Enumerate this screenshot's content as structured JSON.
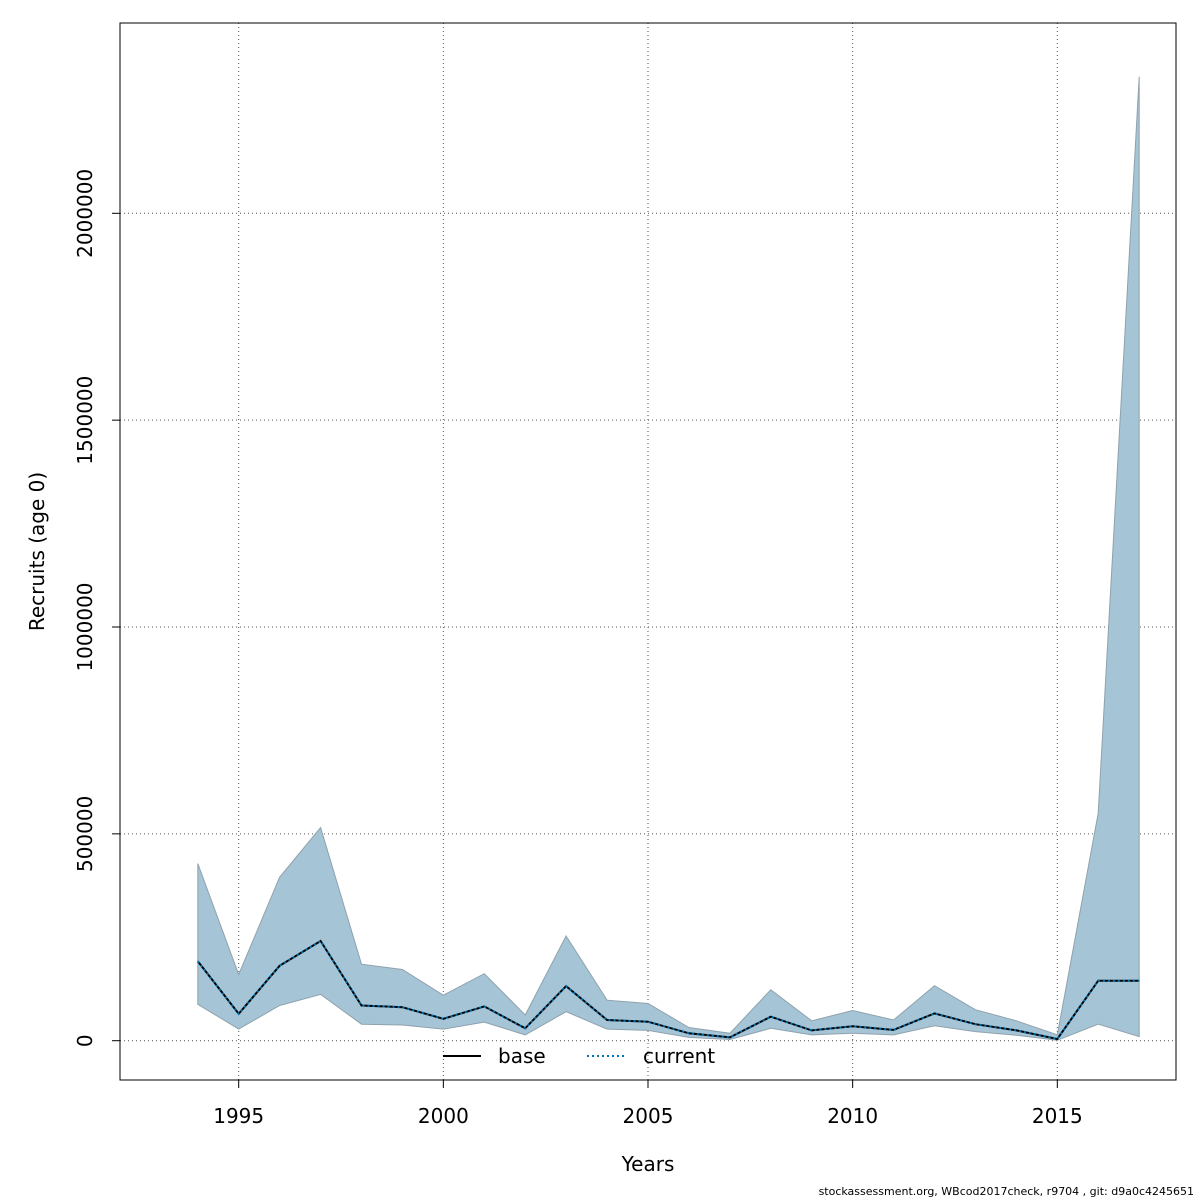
{
  "chart_data": {
    "type": "area",
    "xlabel": "Years",
    "ylabel": "Recruits (age 0)",
    "xlim": [
      1992.1,
      2017.9
    ],
    "ylim": [
      -95000,
      2460000
    ],
    "x_ticks": [
      1995,
      2000,
      2005,
      2010,
      2015
    ],
    "y_ticks": [
      0,
      500000,
      1000000,
      1500000,
      2000000
    ],
    "x_tick_labels": [
      "1995",
      "2000",
      "2005",
      "2010",
      "2015"
    ],
    "y_tick_labels": [
      "0",
      "500000",
      "1000000",
      "1500000",
      "2000000"
    ],
    "grid": true,
    "legend_position": "bottom-center",
    "x": [
      1994,
      1995,
      1996,
      1997,
      1998,
      1999,
      2000,
      2001,
      2002,
      2003,
      2004,
      2005,
      2006,
      2007,
      2008,
      2009,
      2010,
      2011,
      2012,
      2013,
      2014,
      2015,
      2016,
      2017
    ],
    "series": [
      {
        "name": "base",
        "line_style": "solid",
        "color": "#000000",
        "values": [
          192000,
          65000,
          181000,
          241000,
          85000,
          81000,
          53000,
          83000,
          30000,
          132000,
          50000,
          46000,
          18000,
          8000,
          58000,
          25000,
          35000,
          26000,
          66000,
          40000,
          25000,
          4000,
          145000,
          145000
        ]
      },
      {
        "name": "current",
        "line_style": "dotted",
        "color": "#0072B2",
        "values": [
          192000,
          65000,
          181000,
          241000,
          85000,
          81000,
          53000,
          83000,
          30000,
          132000,
          50000,
          46000,
          18000,
          8000,
          58000,
          25000,
          35000,
          26000,
          66000,
          40000,
          25000,
          4000,
          145000,
          145000
        ]
      }
    ],
    "confidence_band": {
      "fill_color": "#a5c4d5",
      "stroke_color": "#8fa2ad",
      "lower": [
        88000,
        28000,
        85000,
        112000,
        40000,
        38000,
        28000,
        45000,
        14000,
        70000,
        28000,
        25000,
        8000,
        3000,
        30000,
        14000,
        18000,
        14000,
        36000,
        22000,
        13000,
        1000,
        40000,
        10000
      ],
      "upper": [
        428000,
        160000,
        395000,
        515000,
        185000,
        172000,
        110000,
        162000,
        62000,
        253000,
        98000,
        90000,
        32000,
        18000,
        123000,
        48000,
        73000,
        50000,
        133000,
        75000,
        48000,
        14000,
        550000,
        2330000
      ]
    }
  },
  "footer_text": "stockassessment.org, WBcod2017check, r9704 , git: d9a0c4245651"
}
